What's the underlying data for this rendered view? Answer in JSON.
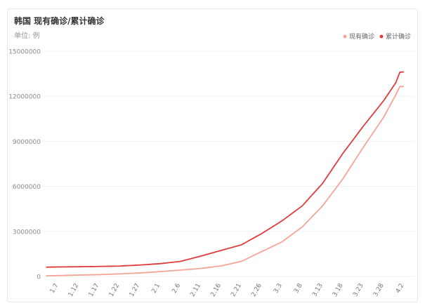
{
  "chart_data": {
    "type": "line",
    "title": "韩国 现有确诊/累计确诊",
    "subtitle": "单位: 例",
    "categories": [
      null,
      null,
      null,
      "1.7",
      null,
      null,
      null,
      null,
      "1.12",
      null,
      null,
      null,
      null,
      "1.17",
      null,
      null,
      null,
      null,
      "1.22",
      null,
      null,
      null,
      null,
      "1.27",
      null,
      null,
      null,
      null,
      "2.1",
      null,
      null,
      null,
      null,
      "2.6",
      null,
      null,
      null,
      null,
      "2.11",
      null,
      null,
      null,
      null,
      "2.16",
      null,
      null,
      null,
      null,
      "2.21",
      null,
      null,
      null,
      null,
      "2.26",
      null,
      null,
      null,
      null,
      "3.3",
      null,
      null,
      null,
      null,
      "3.8",
      null,
      null,
      null,
      null,
      "3.13",
      null,
      null,
      null,
      null,
      "3.18",
      null,
      null,
      null,
      null,
      "3.23",
      null,
      null,
      null,
      null,
      "3.28",
      null,
      null,
      null,
      null,
      "4.2"
    ],
    "series": [
      {
        "name": "现有确诊",
        "color": "#f4a595",
        "values": [
          40000,
          47000,
          53000,
          60000,
          66000,
          72000,
          78000,
          84000,
          90000,
          96000,
          102000,
          108000,
          114000,
          120000,
          130000,
          140000,
          150000,
          160000,
          170000,
          182000,
          194000,
          206000,
          218000,
          230000,
          248000,
          266000,
          284000,
          302000,
          320000,
          340000,
          360000,
          380000,
          400000,
          420000,
          442000,
          464000,
          486000,
          508000,
          530000,
          564000,
          598000,
          632000,
          666000,
          700000,
          760000,
          820000,
          880000,
          940000,
          1000000,
          1130000,
          1260000,
          1390000,
          1520000,
          1650000,
          1780000,
          1910000,
          2040000,
          2170000,
          2300000,
          2500000,
          2700000,
          2900000,
          3100000,
          3300000,
          3580000,
          3860000,
          4140000,
          4420000,
          4700000,
          5060000,
          5420000,
          5780000,
          6140000,
          6500000,
          6920000,
          7340000,
          7760000,
          8180000,
          8600000,
          9000000,
          9400000,
          9800000,
          10200000,
          10600000,
          11100000,
          11600000,
          12100000,
          12650000,
          12650000
        ]
      },
      {
        "name": "累计确诊",
        "color": "#e03b3b",
        "values": [
          620000,
          623000,
          627000,
          630000,
          633000,
          636000,
          639000,
          642000,
          645000,
          649000,
          653000,
          657000,
          661000,
          665000,
          670000,
          675000,
          680000,
          685000,
          690000,
          704000,
          718000,
          732000,
          746000,
          760000,
          778000,
          796000,
          814000,
          832000,
          850000,
          880000,
          910000,
          940000,
          970000,
          1000000,
          1070000,
          1140000,
          1210000,
          1280000,
          1350000,
          1426000,
          1502000,
          1578000,
          1654000,
          1730000,
          1804000,
          1878000,
          1952000,
          2026000,
          2100000,
          2250000,
          2400000,
          2550000,
          2700000,
          2850000,
          3020000,
          3190000,
          3360000,
          3530000,
          3700000,
          3900000,
          4100000,
          4300000,
          4500000,
          4700000,
          5000000,
          5300000,
          5600000,
          5900000,
          6200000,
          6600000,
          7000000,
          7400000,
          7800000,
          8200000,
          8560000,
          8920000,
          9280000,
          9640000,
          10000000,
          10340000,
          10680000,
          11020000,
          11360000,
          11700000,
          12100000,
          12500000,
          12900000,
          13600000,
          13620000
        ]
      }
    ],
    "ylim": [
      0,
      15000000
    ],
    "yticks": [
      0,
      3000000,
      6000000,
      9000000,
      12000000,
      15000000
    ],
    "grid": true,
    "legend": "top-right"
  }
}
